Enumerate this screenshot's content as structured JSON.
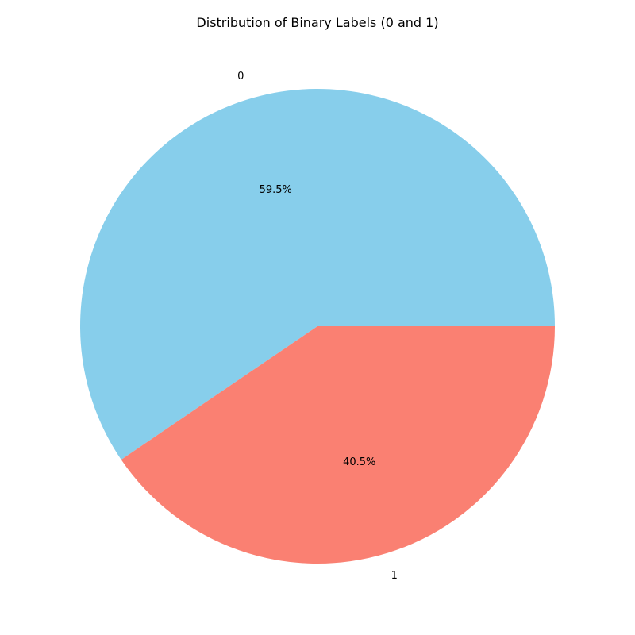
{
  "chart_data": {
    "type": "pie",
    "title": "Distribution of Binary Labels (0 and 1)",
    "categories": [
      "0",
      "1"
    ],
    "values": [
      59.5,
      40.5
    ],
    "percent_labels": [
      "59.5%",
      "40.5%"
    ],
    "colors": [
      "#87CEEB",
      "#FA8072"
    ],
    "start_angle_deg": 0,
    "direction": "counterclockwise",
    "legend": "none"
  }
}
